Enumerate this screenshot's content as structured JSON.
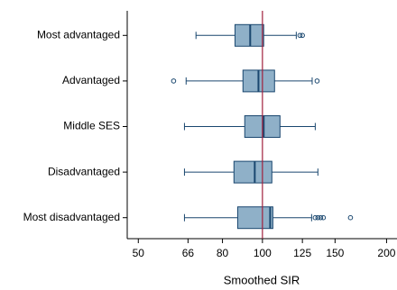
{
  "chart_data": {
    "type": "box",
    "x_label": "Smoothed SIR",
    "log_x": true,
    "categories": [
      "Most advantaged",
      "Advantaged",
      "Middle SES",
      "Disadvantaged",
      "Most disadvantaged"
    ],
    "boxes": [
      {
        "whislo": 69,
        "q1": 85.8,
        "med": 93.4,
        "q3": 100.7,
        "whishi": 120.8,
        "fliers": [
          123.3,
          125
        ]
      },
      {
        "whislo": 65.3,
        "q1": 89.7,
        "med": 97.8,
        "q3": 107,
        "whishi": 132,
        "fliers": [
          60.9,
          135.7
        ]
      },
      {
        "whislo": 64.7,
        "q1": 90.6,
        "med": 100.7,
        "q3": 110.3,
        "whishi": 134.3,
        "fliers": []
      },
      {
        "whislo": 64.7,
        "q1": 85.3,
        "med": 95.8,
        "q3": 105.4,
        "whishi": 136.3,
        "fliers": []
      },
      {
        "whislo": 64.7,
        "q1": 87.1,
        "med": 104.4,
        "q3": 106,
        "whishi": 131.6,
        "fliers": [
          134.3,
          136.3,
          138.4,
          140.5,
          163.5
        ]
      }
    ],
    "box_color": "#8fb0c8",
    "line_color": "#1a476f",
    "refline": 100,
    "refline_color": "#a0203c",
    "xlim": [
      47,
      212
    ],
    "xticks": [
      50,
      66,
      80,
      100,
      125,
      150,
      200
    ]
  }
}
